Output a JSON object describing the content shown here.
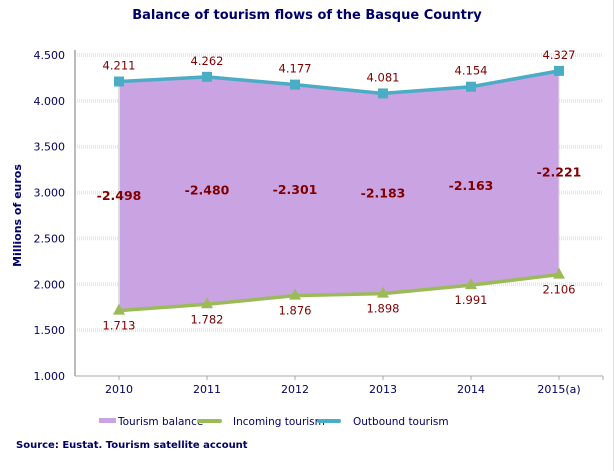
{
  "chart_data": {
    "type": "area",
    "title": "Balance of tourism flows of the Basque Country",
    "xlabel": "",
    "ylabel": "Millions of euros",
    "categories": [
      "2010",
      "2011",
      "2012",
      "2013",
      "2014",
      "2015(a)"
    ],
    "ylim": [
      1000,
      4500
    ],
    "yticks": [
      "1.000",
      "1.500",
      "2.000",
      "2.500",
      "3.000",
      "3.500",
      "4.000",
      "4.500"
    ],
    "grid": true,
    "legend_position": "bottom",
    "series": [
      {
        "name": "Tourism balance",
        "values": [
          -2498,
          -2480,
          -2301,
          -2183,
          -2163,
          -2221
        ],
        "labels": [
          "-2.498",
          "-2.480",
          "-2.301",
          "-2.183",
          "-2.163",
          "-2.221"
        ],
        "color": "#c9a3e2"
      },
      {
        "name": "Incoming tourism",
        "values": [
          1713,
          1782,
          1876,
          1898,
          1991,
          2106
        ],
        "labels": [
          "1.713",
          "1.782",
          "1.876",
          "1.898",
          "1.991",
          "2.106"
        ],
        "color": "#9bbb59"
      },
      {
        "name": "Outbound tourism",
        "values": [
          4211,
          4262,
          4177,
          4081,
          4154,
          4327
        ],
        "labels": [
          "4.211",
          "4.262",
          "4.177",
          "4.081",
          "4.154",
          "4.327"
        ],
        "color": "#4bacc6"
      }
    ]
  },
  "source": "Source: Eustat. Tourism satellite account"
}
